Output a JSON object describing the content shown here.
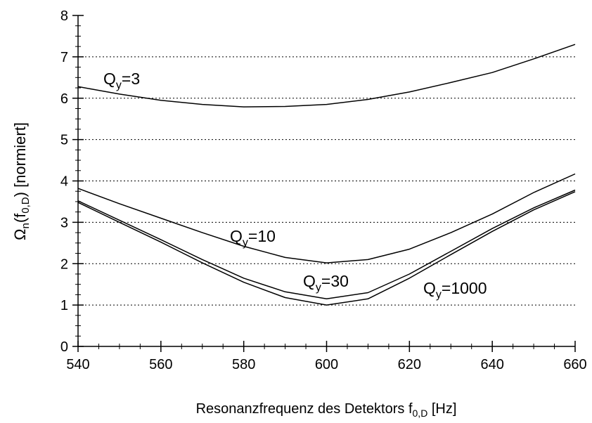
{
  "chart_data": {
    "type": "line",
    "xlabel": {
      "main": "Resonanzfrequenz des Detektors f",
      "sub": "0,D",
      "tail": " [Hz]"
    },
    "ylabel": {
      "main": "Ω",
      "sub": "n",
      "mid": "(f",
      "sub2": "0,D",
      "tail": ") [normiert]"
    },
    "x": [
      540,
      550,
      560,
      570,
      580,
      590,
      600,
      610,
      620,
      630,
      640,
      650,
      660
    ],
    "series": [
      {
        "label": {
          "base": "Q",
          "sub": "y",
          "tail": "=3"
        },
        "color": "#000000",
        "values": [
          6.28,
          6.1,
          5.95,
          5.85,
          5.79,
          5.8,
          5.85,
          5.97,
          6.15,
          6.38,
          6.62,
          6.95,
          7.3
        ]
      },
      {
        "label": {
          "base": "Q",
          "sub": "y",
          "tail": "=10"
        },
        "color": "#000000",
        "values": [
          3.82,
          3.45,
          3.1,
          2.75,
          2.42,
          2.15,
          2.02,
          2.1,
          2.35,
          2.75,
          3.2,
          3.72,
          4.17
        ]
      },
      {
        "label": {
          "base": "Q",
          "sub": "y",
          "tail": "=30"
        },
        "color": "#000000",
        "values": [
          3.52,
          3.05,
          2.58,
          2.1,
          1.65,
          1.32,
          1.15,
          1.3,
          1.75,
          2.3,
          2.85,
          3.35,
          3.78
        ]
      },
      {
        "label": {
          "base": "Q",
          "sub": "y",
          "tail": "=1000"
        },
        "color": "#000000",
        "values": [
          3.48,
          3.0,
          2.52,
          2.02,
          1.55,
          1.18,
          1.0,
          1.15,
          1.65,
          2.22,
          2.78,
          3.3,
          3.74
        ]
      }
    ],
    "xlim": [
      540,
      660
    ],
    "xticks": [
      540,
      560,
      580,
      600,
      620,
      640,
      660
    ],
    "ylim": [
      0,
      8
    ],
    "yticks": [
      0,
      1,
      2,
      3,
      4,
      5,
      6,
      7,
      8
    ],
    "grid": true
  }
}
